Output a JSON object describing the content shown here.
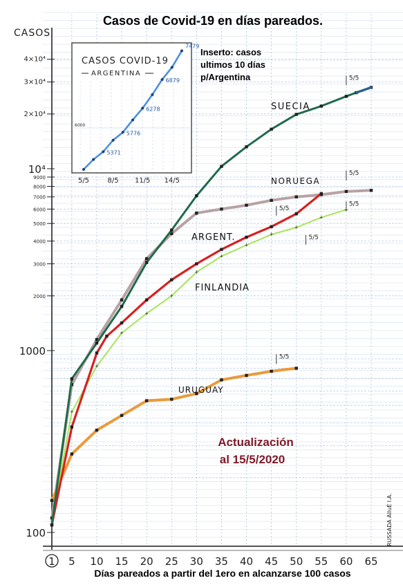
{
  "chart_data": {
    "type": "line",
    "title": "Casos de Covid-19 en días pareados.",
    "ylabel": "CASOS",
    "xlabel": "Días pareados a partir del 1ero en alcanzarse 100 casos",
    "yscale": "log",
    "ylim": [
      100,
      40000
    ],
    "xlim": [
      1,
      65
    ],
    "x_ticks": [
      "1",
      "5",
      "10",
      "15",
      "20",
      "25",
      "30",
      "35",
      "40",
      "45",
      "50",
      "55",
      "60",
      "65"
    ],
    "y_ticks": [
      "100",
      "1000",
      "2000",
      "3000",
      "4000",
      "5000",
      "6000",
      "7000",
      "8000",
      "9000",
      "10⁴",
      "2×10⁴",
      "3×10⁴",
      "4×10⁴"
    ],
    "series": [
      {
        "name": "SUECIA",
        "color": "#1f6b4a",
        "x": [
          1,
          5,
          10,
          15,
          20,
          25,
          30,
          35,
          40,
          45,
          50,
          55,
          60,
          62,
          65
        ],
        "y": [
          110,
          700,
          1100,
          1750,
          3050,
          4600,
          7100,
          10300,
          13200,
          16500,
          19900,
          22100,
          25000,
          26200,
          28000
        ]
      },
      {
        "name": "NORUEGA",
        "color": "#b8a2a4",
        "x": [
          1,
          5,
          10,
          15,
          20,
          25,
          30,
          35,
          40,
          45,
          50,
          55,
          60,
          65
        ],
        "y": [
          120,
          650,
          1150,
          1900,
          3200,
          4400,
          5700,
          6000,
          6300,
          6700,
          7000,
          7200,
          7500,
          7600
        ]
      },
      {
        "name": "ARGENT.",
        "color": "#d72020",
        "x": [
          1,
          5,
          10,
          12,
          15,
          20,
          25,
          30,
          35,
          40,
          45,
          50,
          55
        ],
        "y": [
          110,
          380,
          970,
          1200,
          1420,
          1900,
          2450,
          3000,
          3600,
          4200,
          4800,
          5650,
          7300
        ]
      },
      {
        "name": "FINLANDIA",
        "color": "#a8e35a",
        "x": [
          1,
          5,
          10,
          15,
          20,
          25,
          30,
          35,
          40,
          45,
          50,
          55,
          60
        ],
        "y": [
          115,
          460,
          820,
          1250,
          1600,
          2000,
          2700,
          3300,
          3800,
          4350,
          4750,
          5400,
          5950
        ]
      },
      {
        "name": "URUGUAY",
        "color": "#eb9a3a",
        "x": [
          1,
          5,
          10,
          15,
          20,
          25,
          30,
          35,
          40,
          45,
          50
        ],
        "y": [
          150,
          270,
          365,
          440,
          530,
          540,
          580,
          690,
          730,
          770,
          800
        ]
      }
    ],
    "annotations": [
      "5/5",
      "5/5",
      "5/5",
      "5/5",
      "5/5",
      "5/5"
    ],
    "inset": {
      "title": "CASOS COVID-19",
      "subtitle": "ARGENTINA",
      "note": "Inserto: casos ultimos 10 días p/Argentina",
      "y_tick": "6000",
      "x_ticks": [
        "5/5",
        "8/5",
        "11/5",
        "14/5"
      ],
      "x": [
        "5/5",
        "6/5",
        "7/5",
        "8/5",
        "9/5",
        "10/5",
        "11/5",
        "12/5",
        "13/5",
        "14/5",
        "15/5"
      ],
      "y": [
        5000,
        5208,
        5371,
        5611,
        5776,
        6034,
        6278,
        6563,
        6879,
        7134,
        7479
      ],
      "labels": [
        "5371",
        "5776",
        "6278",
        "6879",
        "7479"
      ]
    },
    "update_note": [
      "Actualización",
      "al 15/5/2020"
    ],
    "signature": "RUSSADA AlluÉ I.A."
  }
}
